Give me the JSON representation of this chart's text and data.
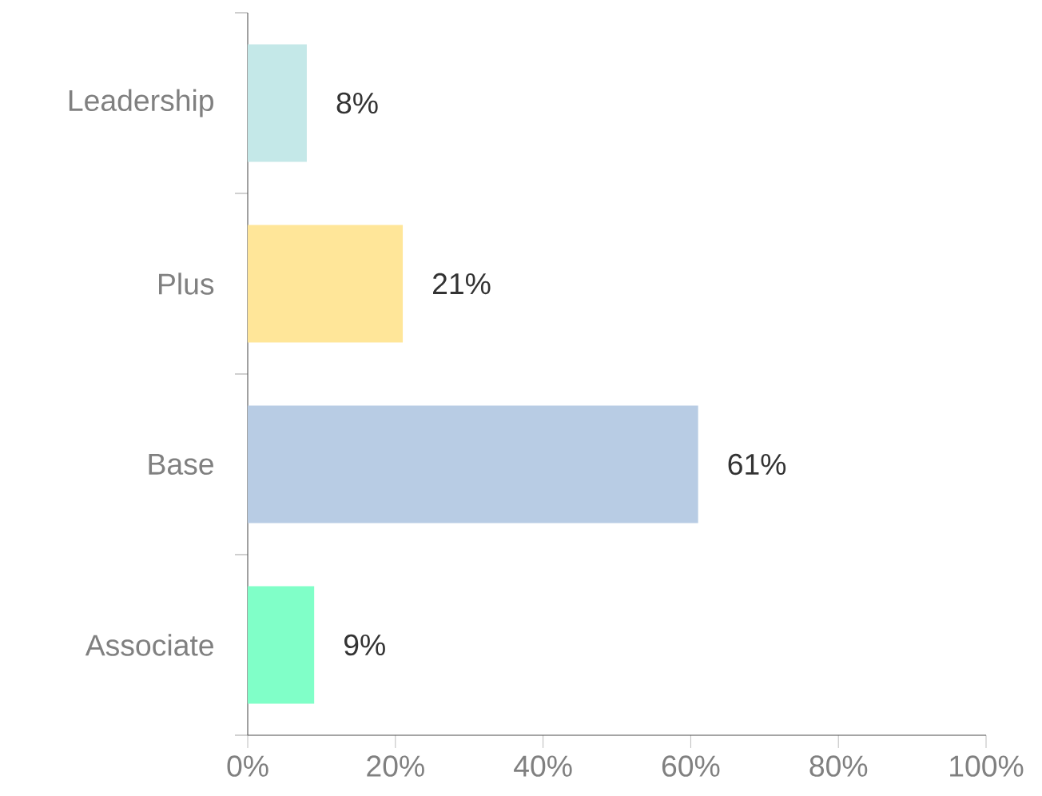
{
  "chart_data": {
    "type": "bar",
    "orientation": "horizontal",
    "categories": [
      "Leadership",
      "Plus",
      "Base",
      "Associate"
    ],
    "values": [
      8,
      21,
      61,
      9
    ],
    "colors": [
      "#c4e8e8",
      "#ffe699",
      "#b8cce4",
      "#80ffc8"
    ],
    "value_labels": [
      "8%",
      "21%",
      "61%",
      "9%"
    ],
    "xlim": [
      0,
      100
    ],
    "xticks": [
      {
        "value": 0,
        "label": "0%"
      },
      {
        "value": 20,
        "label": "20%"
      },
      {
        "value": 40,
        "label": "40%"
      },
      {
        "value": 60,
        "label": "60%"
      },
      {
        "value": 80,
        "label": "80%"
      },
      {
        "value": 100,
        "label": "100%"
      }
    ],
    "grid": false
  }
}
